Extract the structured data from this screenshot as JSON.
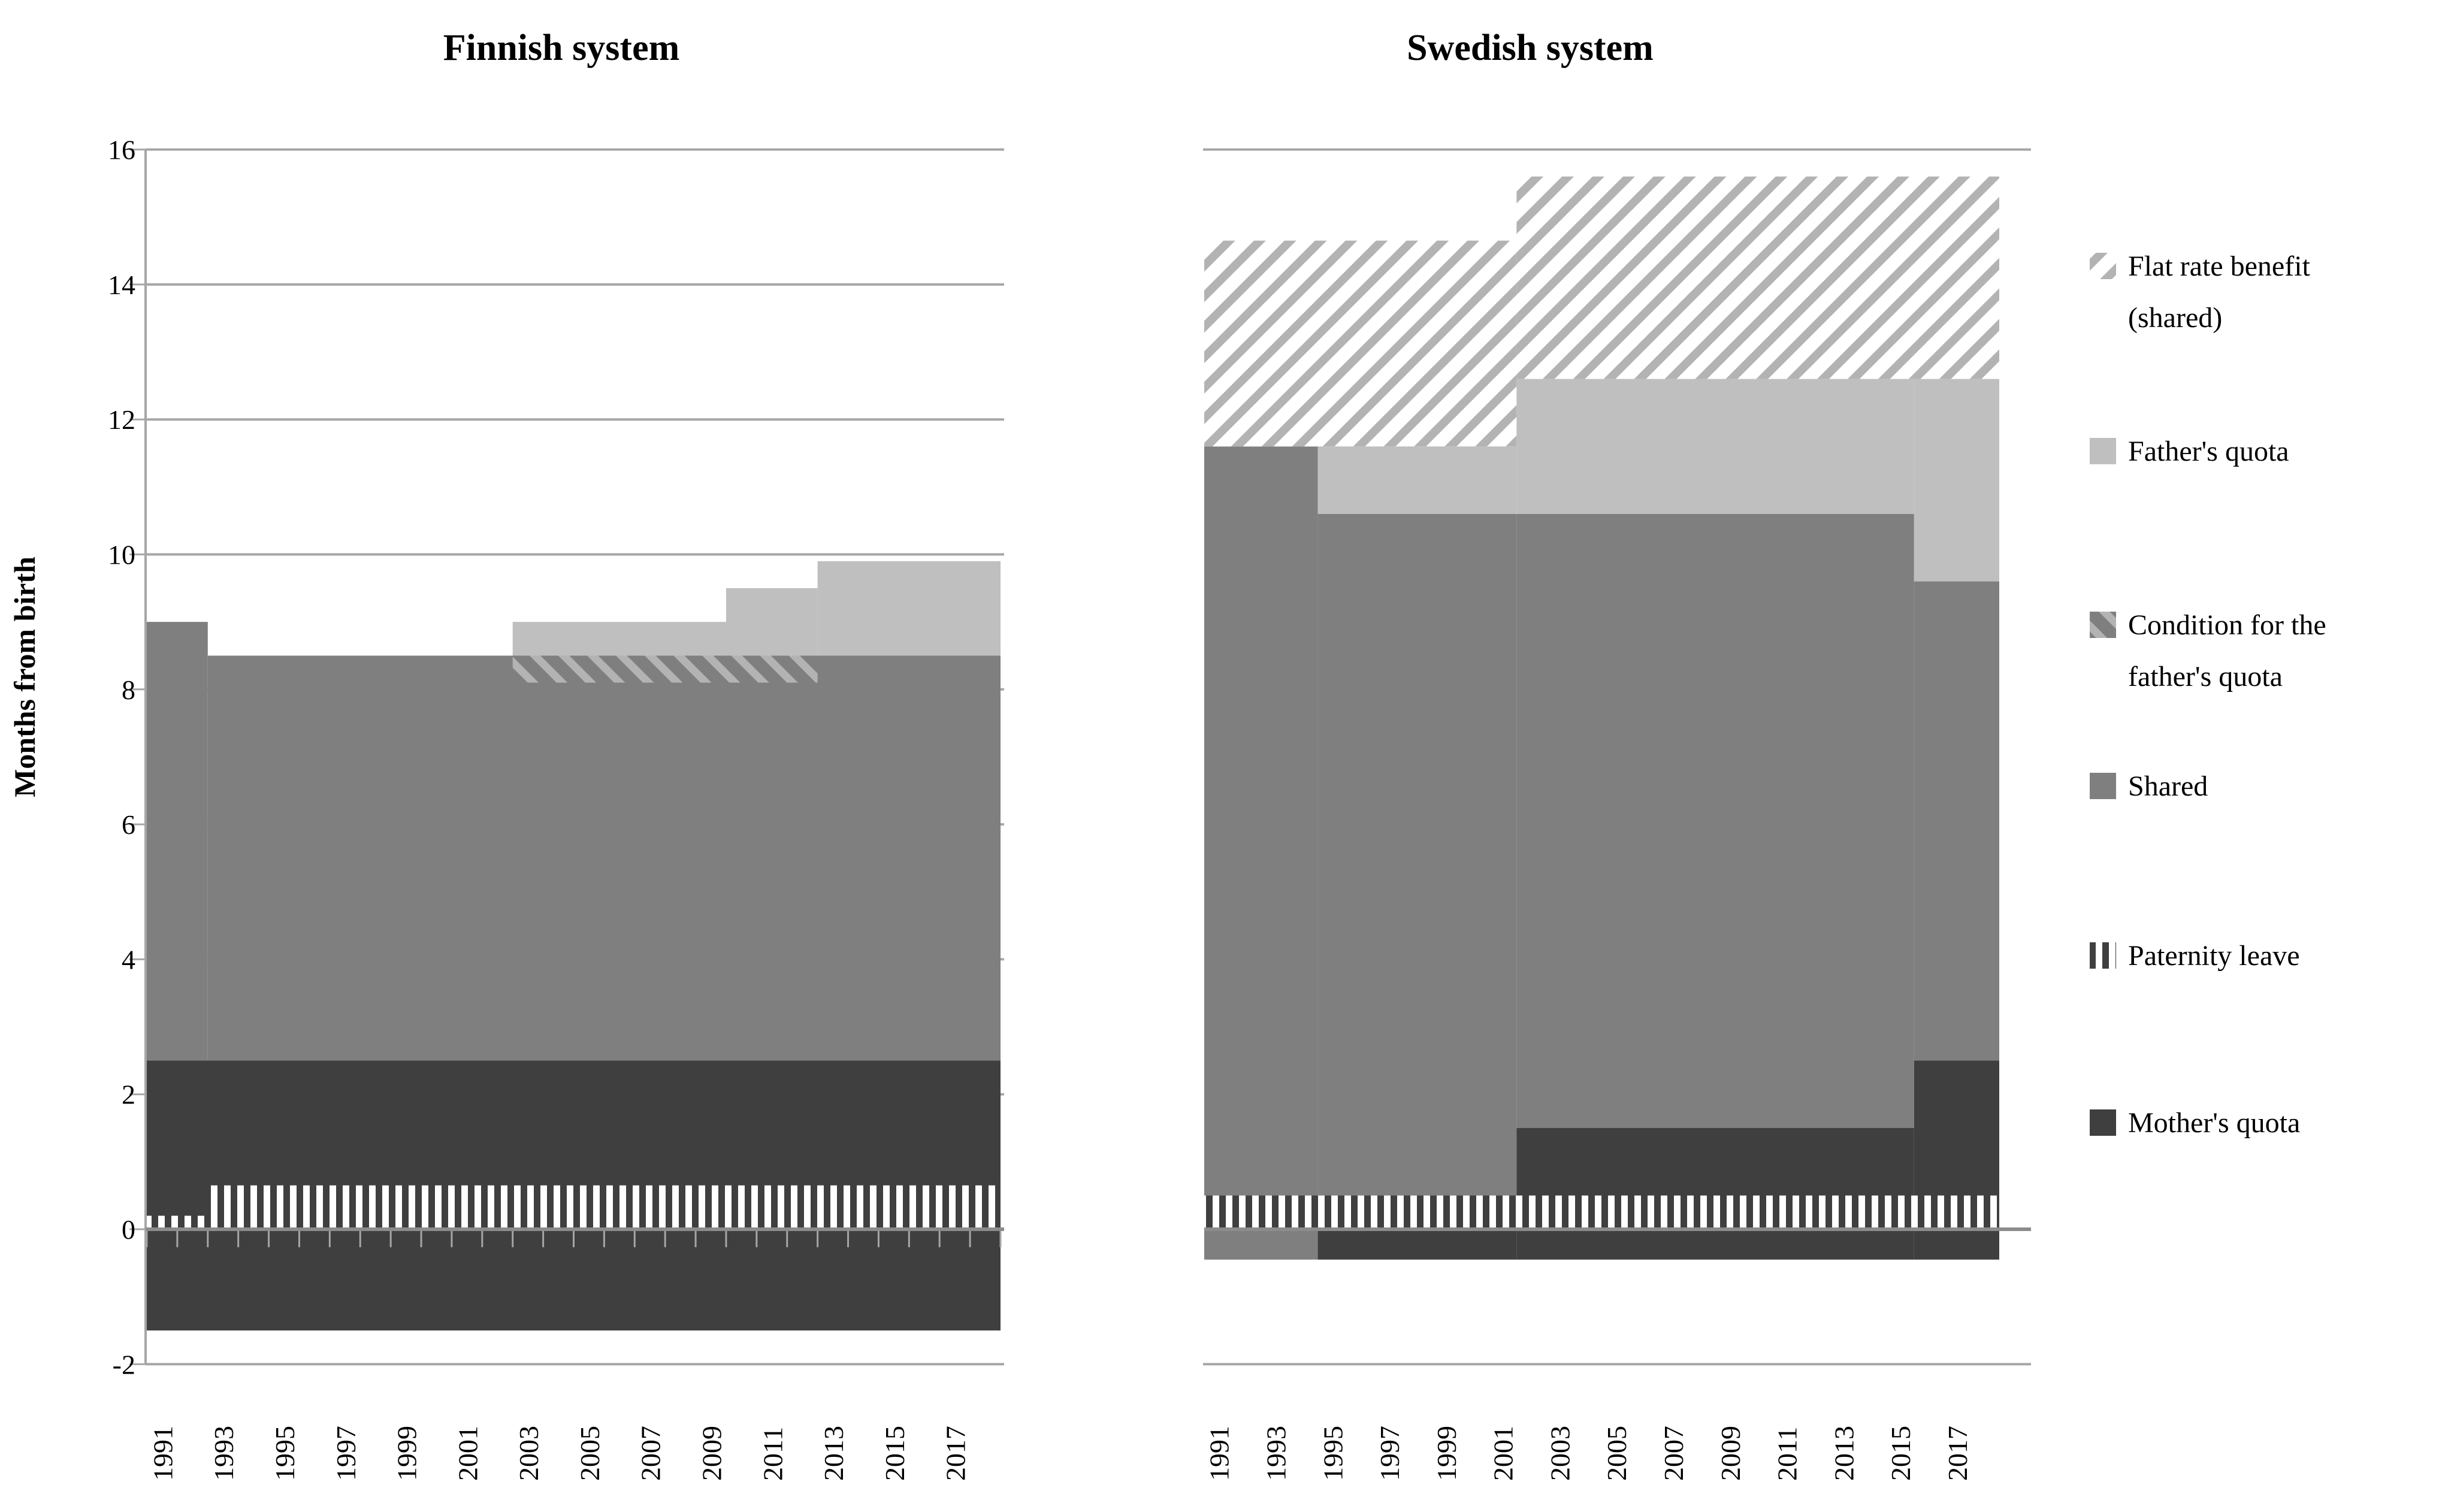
{
  "titles": {
    "finnish": "Finnish system",
    "swedish": "Swedish system"
  },
  "y_axis": {
    "label": "Months from birth",
    "ticks": [
      16,
      14,
      12,
      10,
      8,
      6,
      4,
      2,
      0,
      -2
    ],
    "min": -2,
    "max": 16
  },
  "x_axis": {
    "tick_labels": [
      "1991",
      "1993",
      "1995",
      "1997",
      "1999",
      "2001",
      "2003",
      "2005",
      "2007",
      "2009",
      "2011",
      "2013",
      "2015",
      "2017"
    ]
  },
  "colors": {
    "mothers_quota": "#3f3f3f",
    "shared": "#7f7f7f",
    "fathers_quota": "#bfbfbf",
    "flat_rate_stripe": "#b3b3b3",
    "condition_stripe": "#b3b3b3",
    "paternity_dark": "#3f3f3f",
    "gridline": "#a6a6a6",
    "zero_axis": "#8c8c8c",
    "text": "#000000"
  },
  "legend": [
    {
      "series": "flat_rate",
      "label_lines": [
        "Flat rate benefit",
        "(shared)"
      ]
    },
    {
      "series": "fathers_quota",
      "label_lines": [
        "Father's quota"
      ]
    },
    {
      "series": "condition",
      "label_lines": [
        "Condition for the",
        "father's quota"
      ]
    },
    {
      "series": "shared",
      "label_lines": [
        "Shared"
      ]
    },
    {
      "series": "paternity",
      "label_lines": [
        "Paternity leave"
      ]
    },
    {
      "series": "mothers_quota",
      "label_lines": [
        "Mother's quota"
      ]
    }
  ],
  "chart_data": [
    {
      "type": "area",
      "title": "Finnish system",
      "unit": "months from birth",
      "years_start": 1991,
      "years_end": 2018,
      "ylim": [
        -2,
        16
      ],
      "gridlines": "every 2 months",
      "segments": [
        {
          "series": "shared",
          "from": 1991,
          "to": 1992,
          "y0": 2.5,
          "y1": 9.0
        },
        {
          "series": "shared",
          "from": 1993,
          "to": 2018,
          "y0": 2.5,
          "y1": 8.5
        },
        {
          "series": "mothers_quota",
          "from": 1991,
          "to": 2018,
          "y0": -1.5,
          "y1": 2.5
        },
        {
          "series": "flat_rate",
          "from": 1991,
          "to": 1990,
          "y0": 0,
          "y1": 0
        },
        {
          "series": "fathers_quota",
          "from": 2003,
          "to": 2009,
          "y0": 8.5,
          "y1": 9.0
        },
        {
          "series": "fathers_quota",
          "from": 2010,
          "to": 2012,
          "y0": 8.5,
          "y1": 9.5
        },
        {
          "series": "fathers_quota",
          "from": 2013,
          "to": 2018,
          "y0": 8.5,
          "y1": 9.9
        },
        {
          "series": "condition",
          "from": 2003,
          "to": 2012,
          "y0": 8.1,
          "y1": 8.5
        },
        {
          "series": "paternity",
          "from": 1991,
          "to": 1992,
          "y0": 0,
          "y1": 0.2
        },
        {
          "series": "paternity",
          "from": 1993,
          "to": 2018,
          "y0": 0,
          "y1": 0.65
        }
      ]
    },
    {
      "type": "area",
      "title": "Swedish system",
      "unit": "months from birth",
      "years_start": 1991,
      "years_end": 2018,
      "ylim": [
        -2,
        16
      ],
      "gridlines": "top and bottom frame only",
      "segments": [
        {
          "series": "shared",
          "from": 1991,
          "to": 1994,
          "y0": -0.45,
          "y1": 11.6
        },
        {
          "series": "shared",
          "from": 1995,
          "to": 2001,
          "y0": 0,
          "y1": 10.6
        },
        {
          "series": "shared",
          "from": 2002,
          "to": 2015,
          "y0": 1.5,
          "y1": 10.6
        },
        {
          "series": "shared",
          "from": 2016,
          "to": 2018,
          "y0": 2.5,
          "y1": 9.6
        },
        {
          "series": "mothers_quota",
          "from": 1995,
          "to": 2001,
          "y0": -0.45,
          "y1": 0
        },
        {
          "series": "mothers_quota",
          "from": 2002,
          "to": 2015,
          "y0": -0.45,
          "y1": 1.5
        },
        {
          "series": "mothers_quota",
          "from": 2016,
          "to": 2018,
          "y0": -0.45,
          "y1": 2.5
        },
        {
          "series": "fathers_quota",
          "from": 1995,
          "to": 2001,
          "y0": 10.6,
          "y1": 11.6
        },
        {
          "series": "fathers_quota",
          "from": 2002,
          "to": 2015,
          "y0": 10.6,
          "y1": 12.6
        },
        {
          "series": "fathers_quota",
          "from": 2016,
          "to": 2018,
          "y0": 9.6,
          "y1": 12.6
        },
        {
          "series": "flat_rate",
          "from": 1991,
          "to": 2001,
          "y0": 11.6,
          "y1": 14.65
        },
        {
          "series": "flat_rate",
          "from": 2002,
          "to": 2018,
          "y0": 12.6,
          "y1": 15.6
        },
        {
          "series": "paternity",
          "from": 1991,
          "to": 2018,
          "y0": 0,
          "y1": 0.5
        }
      ]
    }
  ]
}
